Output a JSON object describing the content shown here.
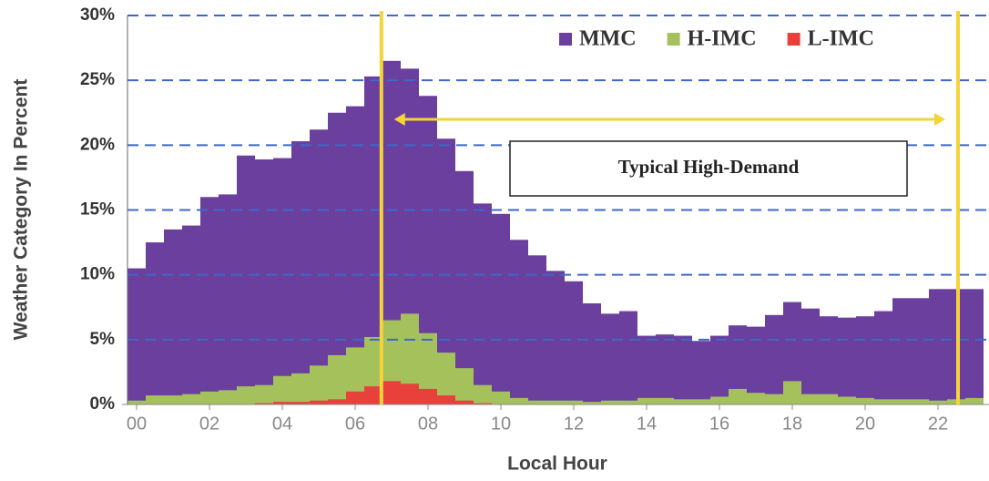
{
  "chart_data": {
    "type": "overlaid-histogram",
    "x_label": "Local Hour",
    "y_label": "Weather Category In Percent",
    "x": [
      0,
      0.5,
      1,
      1.5,
      2,
      2.5,
      3,
      3.5,
      4,
      4.5,
      5,
      5.5,
      6,
      6.5,
      7,
      7.5,
      8,
      8.5,
      9,
      9.5,
      10,
      10.5,
      11,
      11.5,
      12,
      12.5,
      13,
      13.5,
      14,
      14.5,
      15,
      15.5,
      16,
      16.5,
      17,
      17.5,
      18,
      18.5,
      19,
      19.5,
      20,
      20.5,
      21,
      21.5,
      22,
      22.5,
      23
    ],
    "bin_width": 0.5,
    "series": [
      {
        "name": "MMC",
        "color": "#6a3f9e",
        "values": [
          10.5,
          12.5,
          13.5,
          13.8,
          16,
          16.2,
          19.2,
          18.9,
          19,
          20.3,
          21.2,
          22.5,
          23,
          25.3,
          26.5,
          25.9,
          23.8,
          20.5,
          18,
          15.5,
          14.7,
          12.7,
          11.5,
          10.3,
          9.5,
          7.8,
          7,
          7.2,
          5.3,
          5.4,
          5.3,
          4.9,
          5.3,
          6.1,
          6,
          6.9,
          7.9,
          7.4,
          6.8,
          6.7,
          6.8,
          7.2,
          8.2,
          8.2,
          8.9,
          8.9,
          8.9
        ]
      },
      {
        "name": "H-IMC",
        "color": "#a5c15c",
        "values": [
          0.3,
          0.7,
          0.7,
          0.8,
          1,
          1.1,
          1.4,
          1.5,
          2.2,
          2.4,
          3,
          3.8,
          4.4,
          5.2,
          6.5,
          7,
          5.5,
          4,
          2.8,
          1.5,
          1,
          0.5,
          0.3,
          0.3,
          0.3,
          0.2,
          0.3,
          0.3,
          0.5,
          0.5,
          0.4,
          0.4,
          0.6,
          1.2,
          0.9,
          0.8,
          1.8,
          0.8,
          0.8,
          0.6,
          0.5,
          0.4,
          0.4,
          0.4,
          0.3,
          0.4,
          0.5
        ]
      },
      {
        "name": "L-IMC",
        "color": "#e8413c",
        "values": [
          0,
          0,
          0,
          0,
          0,
          0,
          0,
          0.1,
          0.2,
          0.2,
          0.3,
          0.4,
          1,
          1.4,
          1.8,
          1.6,
          1.2,
          0.7,
          0.3,
          0.1,
          0,
          0,
          0,
          0,
          0,
          0,
          0,
          0,
          0,
          0,
          0,
          0,
          0,
          0,
          0,
          0,
          0,
          0,
          0,
          0,
          0,
          0,
          0,
          0,
          0,
          0,
          0
        ]
      }
    ],
    "xlim": [
      -0.25,
      23.4
    ],
    "xticks": [
      {
        "value": 0,
        "label": "00"
      },
      {
        "value": 2,
        "label": "02"
      },
      {
        "value": 4,
        "label": "04"
      },
      {
        "value": 6,
        "label": "06"
      },
      {
        "value": 8,
        "label": "08"
      },
      {
        "value": 10,
        "label": "10"
      },
      {
        "value": 12,
        "label": "12"
      },
      {
        "value": 14,
        "label": "14"
      },
      {
        "value": 16,
        "label": "16"
      },
      {
        "value": 18,
        "label": "18"
      },
      {
        "value": 20,
        "label": "20"
      },
      {
        "value": 22,
        "label": "22"
      }
    ],
    "ylim": [
      0,
      30
    ],
    "yticks": [
      {
        "value": 0,
        "label": "0%"
      },
      {
        "value": 5,
        "label": "5%"
      },
      {
        "value": 10,
        "label": "10%"
      },
      {
        "value": 15,
        "label": "15%"
      },
      {
        "value": 20,
        "label": "20%"
      },
      {
        "value": 25,
        "label": "25%"
      },
      {
        "value": 30,
        "label": "30%"
      }
    ],
    "grid": true,
    "grid_color": "#3d68c8",
    "legend_position": "top-right",
    "annotations": {
      "vlines": [
        6.72,
        22.55
      ],
      "vline_color": "#f5d33a",
      "text": "Typical High-Demand"
    }
  }
}
